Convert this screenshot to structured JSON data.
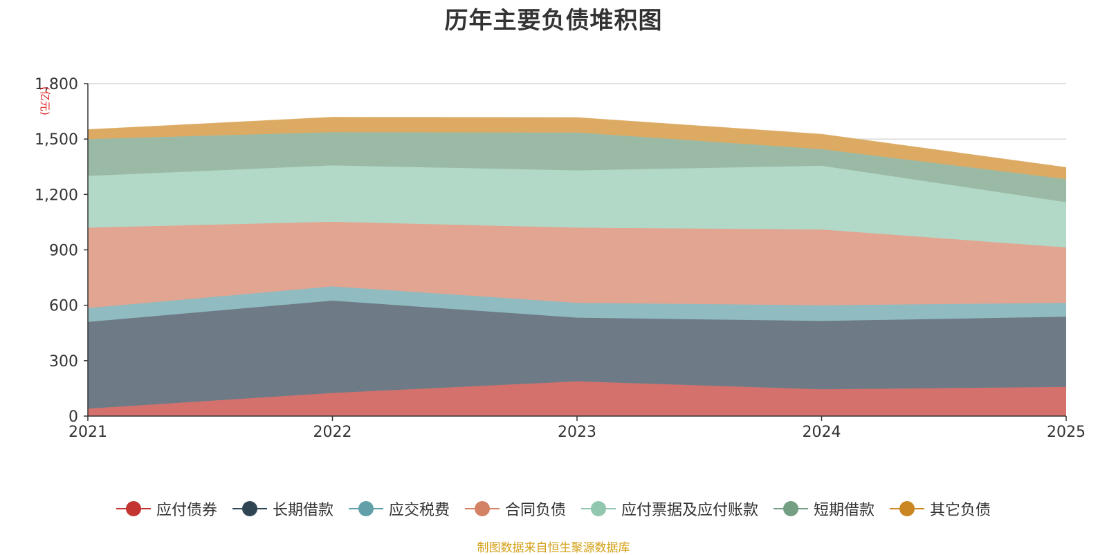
{
  "title": "历年主要负债堆积图",
  "source_note": "制图数据来自恒生聚源数据库",
  "chart_data": {
    "type": "area",
    "stacked": true,
    "title": "历年主要负债堆积图",
    "x": [
      "2021",
      "2022",
      "2023",
      "2024",
      "2025"
    ],
    "xlabel": "",
    "ylabel": "(亿元)",
    "ylim": [
      0,
      1800
    ],
    "yticks": [
      0,
      300,
      600,
      900,
      1200,
      1500,
      1800
    ],
    "ytick_labels": [
      "0",
      "300",
      "600",
      "900",
      "1,200",
      "1,500",
      "1,800"
    ],
    "grid": true,
    "legend": "bottom",
    "series": [
      {
        "name": "应付债券",
        "color": "#c23531",
        "fill": "#d4716d",
        "values": [
          40,
          125,
          188,
          145,
          158
        ]
      },
      {
        "name": "长期借款",
        "color": "#2f4554",
        "fill": "#6e7b86",
        "values": [
          470,
          500,
          345,
          370,
          380
        ]
      },
      {
        "name": "应交税费",
        "color": "#61a0a8",
        "fill": "#8fbbc1",
        "values": [
          75,
          77,
          80,
          85,
          75
        ]
      },
      {
        "name": "合同负债",
        "color": "#d48265",
        "fill": "#e1a591",
        "values": [
          435,
          350,
          407,
          410,
          300
        ]
      },
      {
        "name": "应付票据及应付账款",
        "color": "#91c7ae",
        "fill": "#b2d9c7",
        "values": [
          280,
          305,
          310,
          345,
          245
        ]
      },
      {
        "name": "短期借款",
        "color": "#749f83",
        "fill": "#9bbaa6",
        "values": [
          200,
          180,
          205,
          90,
          125
        ]
      },
      {
        "name": "其它负债",
        "color": "#ca8622",
        "fill": "#dcaa63",
        "values": [
          50,
          80,
          80,
          80,
          62
        ]
      }
    ]
  }
}
